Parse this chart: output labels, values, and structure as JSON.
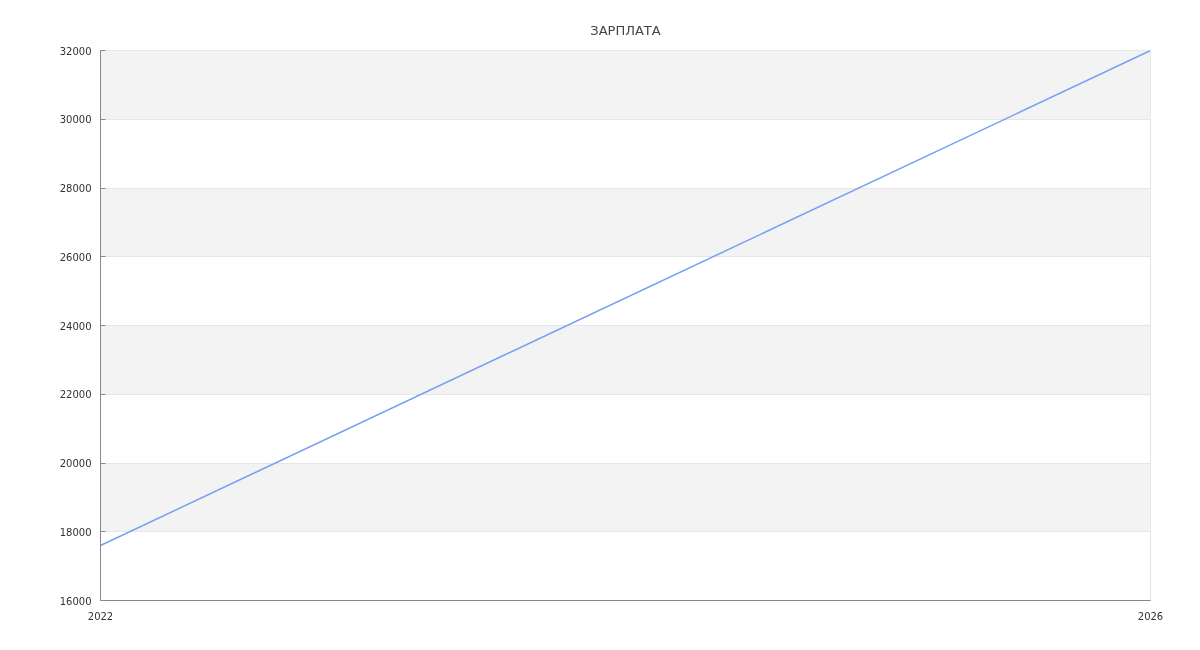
{
  "chart_data": {
    "type": "line",
    "title": "ЗАРПЛАТА",
    "x": [
      "2022",
      "2026"
    ],
    "series": [
      {
        "color": "#76a0f2",
        "values": [
          17600,
          32000
        ]
      }
    ],
    "xlim": [
      "2022",
      "2026"
    ],
    "xticks": [
      "2022",
      "2026"
    ],
    "ylim": [
      16000,
      32000
    ],
    "yticks": [
      16000,
      18000,
      20000,
      22000,
      24000,
      26000,
      28000,
      30000,
      32000
    ],
    "grid": "y"
  }
}
